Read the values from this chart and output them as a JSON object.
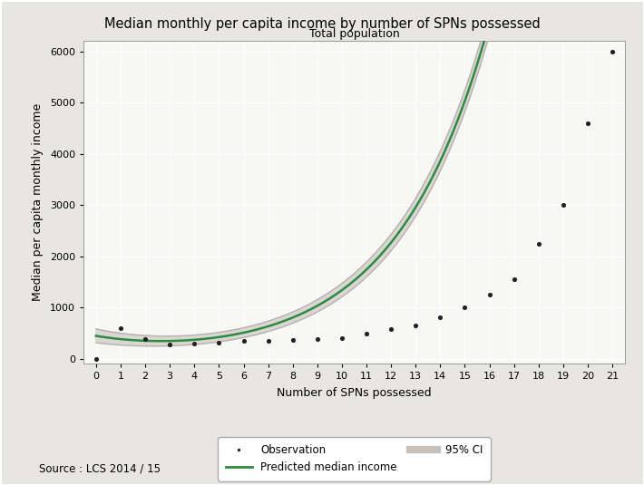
{
  "title": "Median monthly per capita income by number of SPNs possessed",
  "subtitle": "Total population",
  "xlabel": "Number of SPNs possessed",
  "ylabel": "Median per capita monthly income",
  "source": "Source : LCS 2014 / 15",
  "obs_x": [
    0,
    1,
    2,
    3,
    4,
    5,
    6,
    7,
    8,
    9,
    10,
    11,
    12,
    13,
    14,
    15,
    16,
    17,
    18,
    19,
    20,
    21
  ],
  "obs_y": [
    0,
    600,
    380,
    280,
    300,
    320,
    340,
    350,
    360,
    380,
    400,
    480,
    580,
    640,
    800,
    1000,
    1250,
    1550,
    2250,
    3000,
    4600,
    6000
  ],
  "xlim": [
    -0.5,
    21.5
  ],
  "ylim": [
    -100,
    6200
  ],
  "yticks": [
    0,
    1000,
    2000,
    3000,
    4000,
    5000,
    6000
  ],
  "xticks": [
    0,
    1,
    2,
    3,
    4,
    5,
    6,
    7,
    8,
    9,
    10,
    11,
    12,
    13,
    14,
    15,
    16,
    17,
    18,
    19,
    20,
    21
  ],
  "green_color": "#2d8b3f",
  "ci_color": "#c8c0be",
  "obs_color": "#222222",
  "plot_bg_color": "#f7f7f5",
  "fig_bg_color": "#e8e6e2",
  "grid_color": "#ffffff",
  "legend_entries": [
    "Observation",
    "Predicted median income",
    "95% CI"
  ]
}
